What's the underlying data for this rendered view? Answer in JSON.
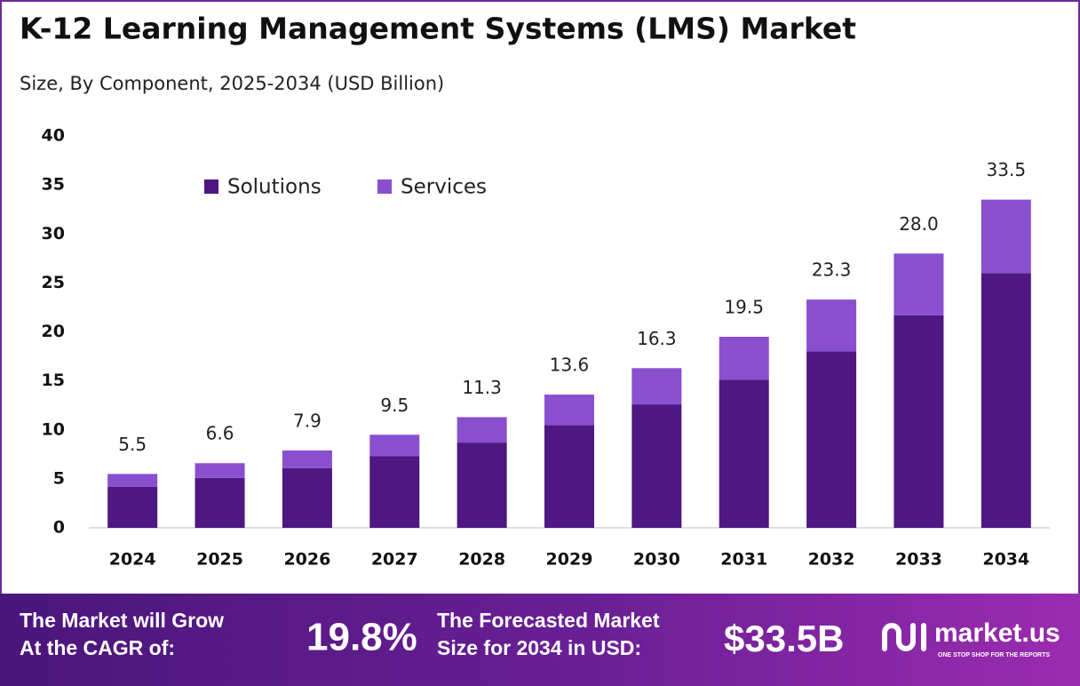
{
  "chart_data": {
    "type": "stacked-bar",
    "title": "K-12 Learning Management Systems (LMS) Market",
    "subtitle": "Size, By Component, 2025-2034 (USD Billion)",
    "categories": [
      "2024",
      "2025",
      "2026",
      "2027",
      "2028",
      "2029",
      "2030",
      "2031",
      "2032",
      "2033",
      "2034"
    ],
    "series": [
      {
        "name": "Solutions",
        "color": "#4e1782",
        "values": [
          4.2,
          5.1,
          6.1,
          7.3,
          8.7,
          10.5,
          12.6,
          15.1,
          18.0,
          21.7,
          26.0
        ]
      },
      {
        "name": "Services",
        "color": "#8a4fcf",
        "values": [
          1.3,
          1.5,
          1.8,
          2.2,
          2.6,
          3.1,
          3.7,
          4.4,
          5.3,
          6.3,
          7.5
        ]
      }
    ],
    "totals": {
      "values": [
        5.5,
        6.6,
        7.9,
        9.5,
        11.3,
        13.6,
        16.3,
        19.5,
        23.3,
        28.0,
        33.5
      ],
      "value_labels": [
        "5.5",
        "6.6",
        "7.9",
        "9.5",
        "11.3",
        "13.6",
        "16.3",
        "19.5",
        "23.3",
        "28.0",
        "33.5"
      ]
    },
    "ylim": [
      0,
      40
    ],
    "yticks": [
      0,
      5,
      10,
      15,
      20,
      25,
      30,
      35,
      40
    ],
    "grid": false,
    "legend": "top-left"
  },
  "footer": {
    "cagr_label": [
      "The Market will Grow",
      "At the CAGR of:"
    ],
    "cagr_value": "19.8%",
    "forecast_label": [
      "The Forecasted Market",
      "Size for 2034 in USD:"
    ],
    "forecast_value": "$33.5B",
    "brand": "market.us",
    "tagline": "ONE STOP SHOP FOR THE REPORTS"
  }
}
